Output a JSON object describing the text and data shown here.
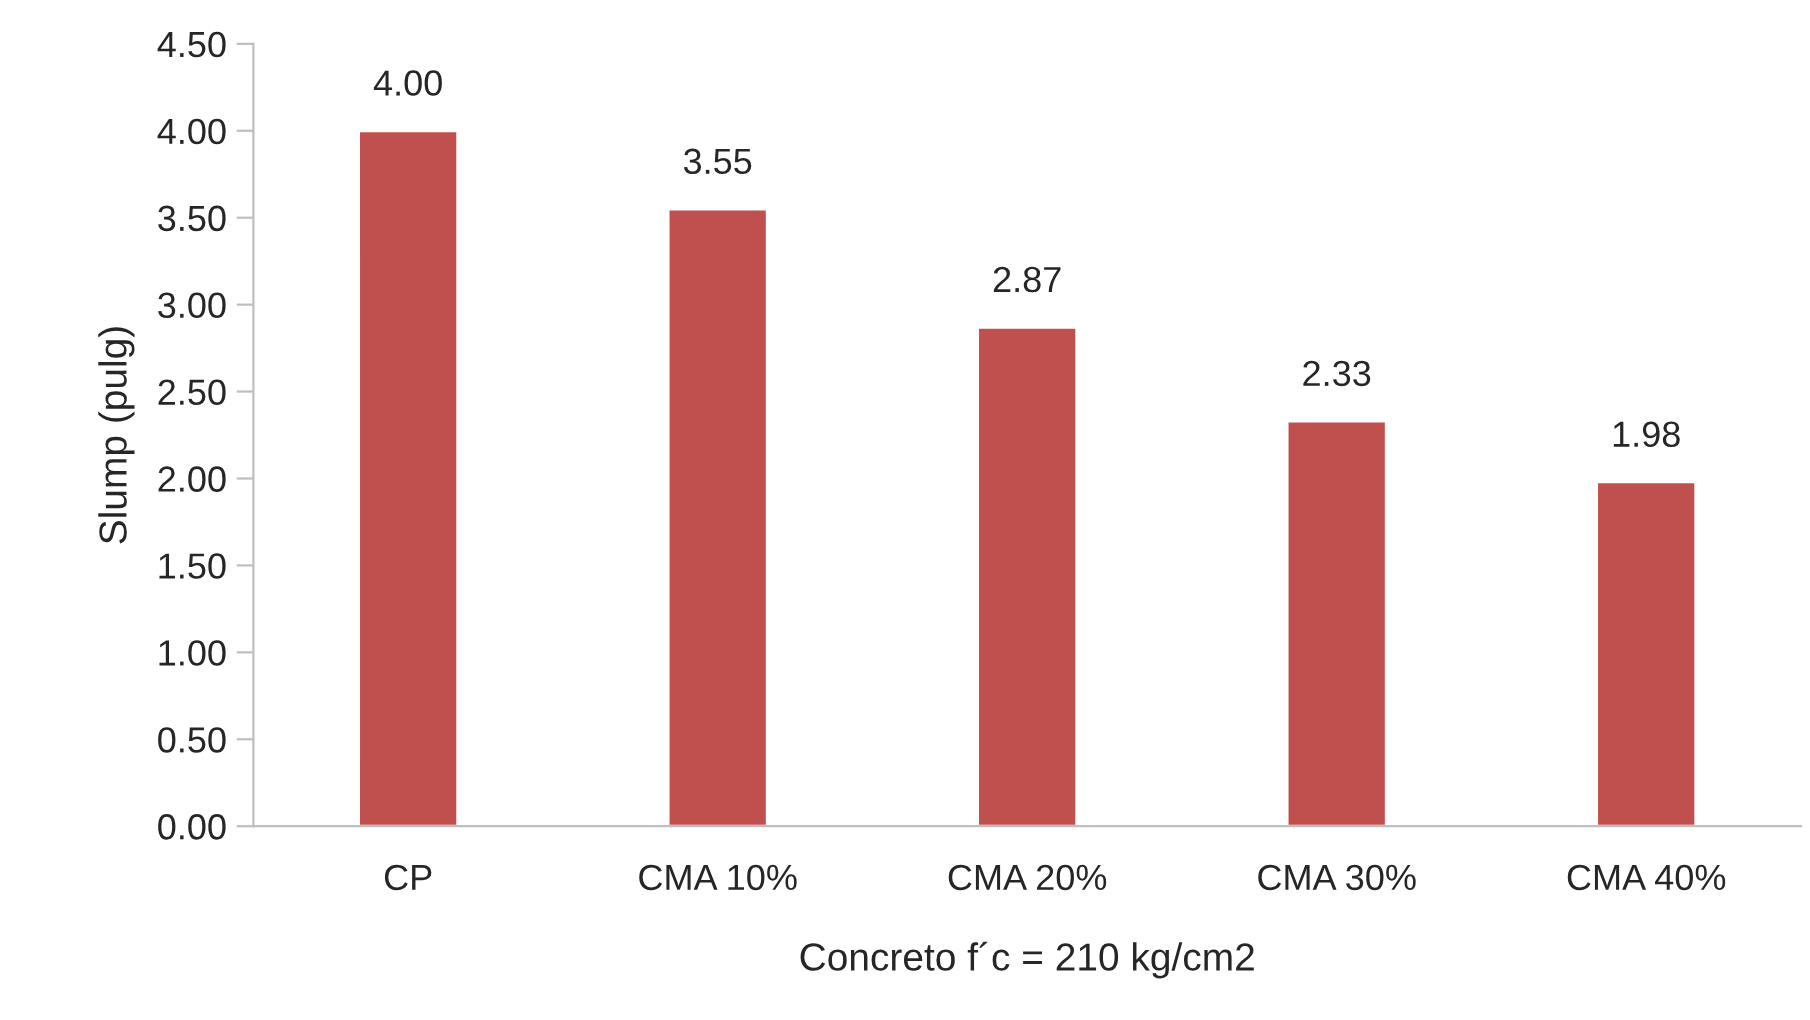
{
  "chart_data": {
    "type": "bar",
    "xlabel": "Concreto f´c = 210 kg/cm2",
    "ylabel": "Slump (pulg)",
    "categories": [
      "CP",
      "CMA 10%",
      "CMA 20%",
      "CMA 30%",
      "CMA 40%"
    ],
    "values": [
      4.0,
      3.55,
      2.87,
      2.33,
      1.98
    ],
    "value_labels": [
      "4.00",
      "3.55",
      "2.87",
      "2.33",
      "1.98"
    ],
    "color": "#c0504d",
    "ylim": [
      0,
      4.5
    ],
    "yticks": [
      {
        "value": 0,
        "label": "0.00"
      },
      {
        "value": 0.5,
        "label": "0.50"
      },
      {
        "value": 1,
        "label": "1.00"
      },
      {
        "value": 1.5,
        "label": "1.50"
      },
      {
        "value": 2,
        "label": "2.00"
      },
      {
        "value": 2.5,
        "label": "2.50"
      },
      {
        "value": 3,
        "label": "3.00"
      },
      {
        "value": 3.5,
        "label": "3.50"
      },
      {
        "value": 4,
        "label": "4.00"
      },
      {
        "value": 4.5,
        "label": "4.50"
      }
    ],
    "grid": false,
    "legend": false
  }
}
